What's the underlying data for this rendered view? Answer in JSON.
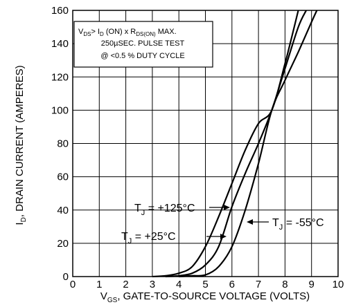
{
  "chart_data": {
    "type": "line",
    "xlabel": {
      "prefix": "V",
      "sub": "GS",
      "rest": ", GATE-TO-SOURCE VOLTAGE (VOLTS)"
    },
    "ylabel": {
      "prefix": "I",
      "sub": "D",
      "rest": ", DRAIN CURRENT (AMPERES)"
    },
    "xlim": [
      0,
      10
    ],
    "ylim": [
      0,
      160
    ],
    "xticks": [
      "0",
      "1",
      "2",
      "3",
      "4",
      "5",
      "6",
      "7",
      "8",
      "9",
      "10"
    ],
    "yticks": [
      "0",
      "20",
      "40",
      "60",
      "80",
      "100",
      "120",
      "140",
      "160"
    ],
    "grid": true,
    "test_note": {
      "line1": {
        "v": "V",
        "v_sub": "DS",
        "mid": "> I",
        "i_sub": "D",
        "on": " (ON) x  R",
        "r_sub": "DS(ON)",
        "max": " MAX."
      },
      "line2": "250µSEC.  PULSE TEST",
      "line3": "@  <0.5 %  DUTY CYCLE"
    },
    "series": [
      {
        "label": {
          "t": "T",
          "sub": "J",
          "rest": " = +125°C"
        },
        "x": [
          3.0,
          3.5,
          4.0,
          4.5,
          5.0,
          5.5,
          6.0,
          6.5,
          7.0,
          7.5,
          8.0,
          8.5
        ],
        "y": [
          0,
          0.5,
          2,
          6,
          18,
          36,
          56,
          76,
          92,
          100,
          128,
          160
        ]
      },
      {
        "label": {
          "t": "T",
          "sub": "J",
          "rest": " = +25°C"
        },
        "x": [
          3.5,
          4.0,
          4.5,
          5.0,
          5.5,
          6.0,
          6.5,
          7.0,
          7.5,
          8.0,
          8.5,
          8.8
        ],
        "y": [
          0,
          0.5,
          2,
          7,
          18,
          42,
          62,
          80,
          100,
          125,
          150,
          160
        ]
      },
      {
        "label": {
          "t": "T",
          "sub": "J",
          "rest": " = -55°C"
        },
        "x": [
          4.0,
          4.5,
          5.0,
          5.5,
          6.0,
          6.5,
          7.0,
          7.5,
          8.0,
          8.5,
          9.0,
          9.2
        ],
        "y": [
          0,
          0.5,
          1,
          6,
          18,
          40,
          68,
          100,
          118,
          135,
          153,
          160
        ]
      }
    ]
  }
}
